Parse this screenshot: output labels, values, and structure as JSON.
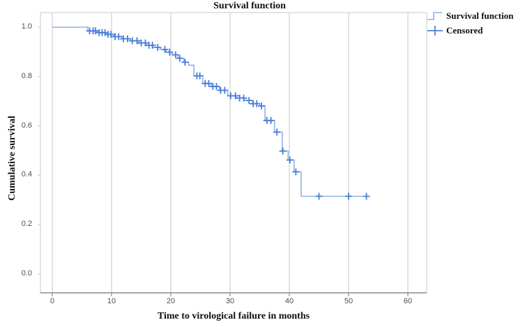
{
  "chart_data": {
    "type": "line",
    "subtype": "kaplan-meier-step",
    "title": "Survival function",
    "xlabel": "Time to virological failure in months",
    "ylabel": "Cumulative survival",
    "xlim": [
      0,
      63
    ],
    "ylim": [
      0.0,
      1.06
    ],
    "xticks": [
      "0",
      "10",
      "20",
      "30",
      "40",
      "50",
      "60"
    ],
    "xtick_values": [
      0,
      10,
      20,
      30,
      40,
      50,
      60
    ],
    "yticks": [
      "0.0",
      "0.2",
      "0.4",
      "0.6",
      "0.8",
      "1.0"
    ],
    "ytick_values": [
      0.0,
      0.2,
      0.4,
      0.6,
      0.8,
      1.0
    ],
    "grid": "vertical-only",
    "legend_position": "top-right-outside",
    "legend": [
      {
        "label": "Survival function",
        "marker": "step-line"
      },
      {
        "label": "Censored",
        "marker": "plus"
      }
    ],
    "colors": {
      "line": "#8FB2E4",
      "censor": "#4A7ED6",
      "grid": "#D8D8D8",
      "frame": "#C9C9C9",
      "axis": "#8A8A8A",
      "tick_text": "#4f4f4f",
      "text": "#111111"
    },
    "survival_steps": [
      [
        0,
        1.0
      ],
      [
        6,
        0.985
      ],
      [
        7.6,
        0.978
      ],
      [
        9,
        0.971
      ],
      [
        10.4,
        0.962
      ],
      [
        11.8,
        0.953
      ],
      [
        13.2,
        0.945
      ],
      [
        14.6,
        0.936
      ],
      [
        15.8,
        0.927
      ],
      [
        17,
        0.918
      ],
      [
        18.2,
        0.91
      ],
      [
        19.2,
        0.899
      ],
      [
        20.2,
        0.888
      ],
      [
        21.2,
        0.874
      ],
      [
        22.2,
        0.858
      ],
      [
        23,
        0.846
      ],
      [
        23.9,
        0.803
      ],
      [
        25.4,
        0.772
      ],
      [
        26.8,
        0.76
      ],
      [
        28.2,
        0.744
      ],
      [
        29.6,
        0.722
      ],
      [
        31,
        0.713
      ],
      [
        32.4,
        0.703
      ],
      [
        33.8,
        0.69
      ],
      [
        35,
        0.681
      ],
      [
        35.9,
        0.622
      ],
      [
        37.5,
        0.575
      ],
      [
        38.8,
        0.498
      ],
      [
        39.8,
        0.462
      ],
      [
        40.8,
        0.414
      ],
      [
        42,
        0.315
      ]
    ],
    "curve_end_t": 53,
    "censored_t": [
      6.3,
      6.9,
      7.3,
      7.9,
      8.4,
      8.9,
      9.4,
      9.9,
      10.6,
      11.2,
      12.0,
      12.7,
      13.5,
      14.3,
      15.0,
      15.7,
      16.3,
      16.9,
      17.8,
      19.0,
      19.8,
      20.8,
      21.5,
      22.4,
      24.4,
      24.9,
      25.8,
      26.4,
      27.1,
      27.7,
      28.4,
      29.1,
      30.1,
      30.9,
      31.6,
      32.3,
      33.2,
      33.9,
      34.5,
      35.3,
      36.2,
      36.9,
      37.9,
      38.9,
      40.1,
      41.1,
      45,
      50,
      53
    ]
  }
}
